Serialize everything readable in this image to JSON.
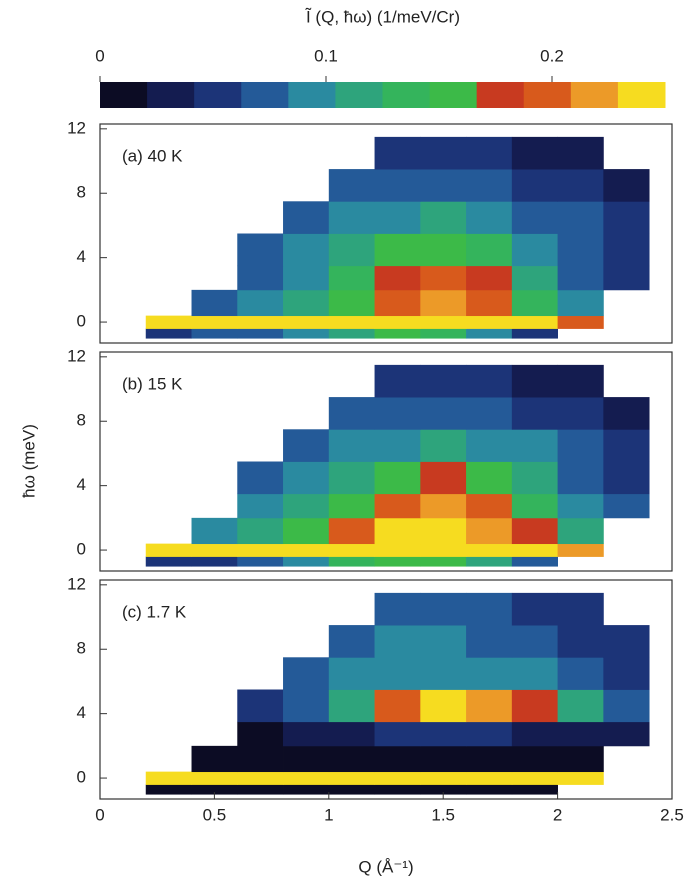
{
  "chart_data": [
    {
      "type": "colorbar",
      "title": "Ĩ (Q, ħω) (1/meV/Cr)",
      "clim": [
        0,
        0.25
      ],
      "ticks": [
        0,
        0.1,
        0.2
      ],
      "colors": [
        "#0c0c24",
        "#141c50",
        "#1c3478",
        "#245a98",
        "#2a8aa0",
        "#2ea47c",
        "#34b45c",
        "#3cba48",
        "#c83a20",
        "#d85a1c",
        "#ec9a28",
        "#f6dc20"
      ]
    },
    {
      "type": "heatmap",
      "label": "(a) 40 K",
      "xlim": [
        0,
        2.5
      ],
      "ylim": [
        -1.3,
        12.3
      ],
      "yticks": [
        0,
        4,
        8,
        12
      ],
      "q_edges": [
        0.2,
        0.4,
        0.6,
        0.8,
        1.0,
        1.2,
        1.4,
        1.6,
        1.8,
        2.0,
        2.2,
        2.4
      ],
      "e_edges": [
        -1,
        -0.4,
        0.4,
        2,
        3.5,
        5.5,
        7.5,
        9.5,
        11.5
      ],
      "z": [
        [
          0.06,
          0.07,
          0.08,
          0.1,
          0.12,
          0.15,
          0.13,
          0.1,
          0.06,
          null,
          null
        ],
        [
          0.24,
          0.24,
          0.24,
          0.24,
          0.24,
          0.24,
          0.24,
          0.24,
          0.23,
          0.2,
          null
        ],
        [
          null,
          0.08,
          0.1,
          0.12,
          0.15,
          0.2,
          0.22,
          0.2,
          0.14,
          0.09,
          null
        ],
        [
          null,
          null,
          0.08,
          0.1,
          0.13,
          0.18,
          0.2,
          0.17,
          0.12,
          0.08,
          0.06
        ],
        [
          null,
          null,
          0.07,
          0.09,
          0.11,
          0.15,
          0.16,
          0.14,
          0.1,
          0.08,
          0.06
        ],
        [
          null,
          null,
          null,
          0.08,
          0.09,
          0.1,
          0.11,
          0.1,
          0.08,
          0.07,
          0.05
        ],
        [
          null,
          null,
          null,
          null,
          0.07,
          0.08,
          0.08,
          0.07,
          0.06,
          0.05,
          0.04
        ],
        [
          null,
          null,
          null,
          null,
          null,
          0.05,
          0.06,
          0.05,
          0.04,
          0.03,
          null
        ]
      ]
    },
    {
      "type": "heatmap",
      "label": "(b) 15 K",
      "ylabel": "ħω (meV)",
      "xlim": [
        0,
        2.5
      ],
      "ylim": [
        -1.3,
        12.3
      ],
      "yticks": [
        0,
        4,
        8,
        12
      ],
      "q_edges": [
        0.2,
        0.4,
        0.6,
        0.8,
        1.0,
        1.2,
        1.4,
        1.6,
        1.8,
        2.0,
        2.2,
        2.4
      ],
      "e_edges": [
        -1,
        -0.4,
        0.4,
        2,
        3.5,
        5.5,
        7.5,
        9.5,
        11.5
      ],
      "z": [
        [
          0.05,
          0.06,
          0.08,
          0.1,
          0.13,
          0.16,
          0.15,
          0.12,
          0.07,
          null,
          null
        ],
        [
          0.24,
          0.24,
          0.24,
          0.24,
          0.24,
          0.24,
          0.24,
          0.24,
          0.24,
          0.22,
          null
        ],
        [
          null,
          0.09,
          0.12,
          0.15,
          0.2,
          0.23,
          0.24,
          0.22,
          0.17,
          0.11,
          null
        ],
        [
          null,
          null,
          0.09,
          0.11,
          0.15,
          0.2,
          0.22,
          0.19,
          0.14,
          0.09,
          0.07
        ],
        [
          null,
          null,
          0.07,
          0.09,
          0.12,
          0.16,
          0.17,
          0.15,
          0.11,
          0.08,
          0.06
        ],
        [
          null,
          null,
          null,
          0.08,
          0.09,
          0.1,
          0.11,
          0.1,
          0.09,
          0.07,
          0.05
        ],
        [
          null,
          null,
          null,
          null,
          0.07,
          0.08,
          0.08,
          0.07,
          0.06,
          0.05,
          0.04
        ],
        [
          null,
          null,
          null,
          null,
          null,
          0.05,
          0.06,
          0.05,
          0.04,
          0.03,
          null
        ]
      ]
    },
    {
      "type": "heatmap",
      "label": "(c) 1.7 K",
      "xlabel": "Q (Å⁻¹)",
      "xlim": [
        0,
        2.5
      ],
      "ylim": [
        -1.3,
        12.3
      ],
      "yticks": [
        0,
        4,
        8,
        12
      ],
      "xticks": [
        0,
        0.5,
        1,
        1.5,
        2,
        2.5
      ],
      "q_edges": [
        0.2,
        0.4,
        0.6,
        0.8,
        1.0,
        1.2,
        1.4,
        1.6,
        1.8,
        2.0,
        2.2,
        2.4
      ],
      "e_edges": [
        -1,
        -0.4,
        0.4,
        2,
        3.5,
        5.5,
        7.5,
        9.5,
        11.5
      ],
      "z": [
        [
          0.01,
          0.01,
          0.01,
          0.01,
          0.01,
          0.01,
          0.01,
          0.01,
          0.01,
          null,
          null
        ],
        [
          0.24,
          0.24,
          0.24,
          0.24,
          0.24,
          0.24,
          0.24,
          0.24,
          0.24,
          0.23,
          null
        ],
        [
          null,
          0.02,
          0.02,
          0.02,
          0.02,
          0.02,
          0.02,
          0.02,
          0.02,
          0.02,
          null
        ],
        [
          null,
          null,
          0.02,
          0.03,
          0.04,
          0.05,
          0.05,
          0.05,
          0.04,
          0.03,
          0.03
        ],
        [
          null,
          null,
          0.05,
          0.08,
          0.12,
          0.19,
          0.23,
          0.22,
          0.18,
          0.12,
          0.08
        ],
        [
          null,
          null,
          null,
          0.07,
          0.09,
          0.1,
          0.1,
          0.1,
          0.09,
          0.08,
          0.06
        ],
        [
          null,
          null,
          null,
          null,
          0.08,
          0.09,
          0.09,
          0.08,
          0.07,
          0.06,
          0.05
        ],
        [
          null,
          null,
          null,
          null,
          null,
          0.07,
          0.08,
          0.07,
          0.06,
          0.05,
          null
        ]
      ]
    }
  ]
}
